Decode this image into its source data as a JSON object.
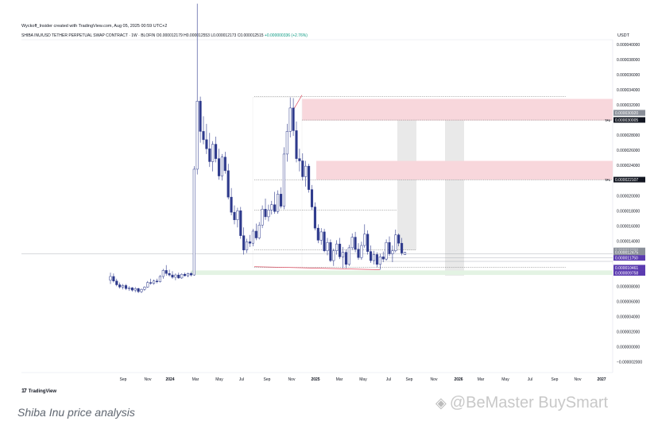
{
  "header": {
    "created_by": "Wyckoff_Insider created with TradingView.com, Aug 05, 2025 00:59 UTC+2",
    "symbol_line": "SHIBA INU/USD TETHER PERPETUAL SWAP CONTRACT · 1W · BLOFIN",
    "ohlc": "O0.000012179 H0.000012553 L0.000012173 C0.000012515",
    "change": "+0.000000336 (+2.76%)"
  },
  "currency": "USDT",
  "footer": {
    "logo": "TradingView",
    "caption": "Shiba Inu price analysis",
    "watermark": "@BeMaster BuySmart"
  },
  "colors": {
    "up": "#ffffff",
    "down": "#2e3a8c",
    "wick": "#2e3a8c",
    "supply_zone": "#f8d7dc",
    "demand_zone": "#e3f3e3",
    "projection": "#e9e9e9",
    "trendline": "#e04a5f",
    "label_purple": "#5b3bb0",
    "label_dark": "#131722"
  },
  "chart_data": {
    "type": "candlestick",
    "timeframe": "1W",
    "y_axis": {
      "min": -2e-06,
      "max": 4e-05,
      "ticks": [
        "0.000040000",
        "0.000038000",
        "0.000036000",
        "0.000034000",
        "0.000032000",
        "0.000030000",
        "0.000028000",
        "0.000026000",
        "0.000024000",
        "0.000022000",
        "0.000020000",
        "0.000018000",
        "0.000016000",
        "0.000014000",
        "0.000012000",
        "0.000010000",
        "0.000008000",
        "0.000006000",
        "0.000004000",
        "0.000002000",
        "0.000000000",
        "−0.000002000"
      ]
    },
    "x_axis": {
      "labels": [
        "Sep",
        "Nov",
        "2024",
        "Mar",
        "May",
        "Jul",
        "Sep",
        "Nov",
        "2025",
        "Mar",
        "May",
        "Jul",
        "Sep",
        "Nov",
        "2026",
        "Mar",
        "May",
        "Jul",
        "Sep",
        "Nov",
        "2027"
      ]
    },
    "price_labels": [
      {
        "text": "0.000030964",
        "value": 3.0964e-05,
        "style": "gray"
      },
      {
        "text": "0.000030920",
        "value": 3.092e-05,
        "style": "gray"
      },
      {
        "text": "0.000030005",
        "value": 3.0005e-05,
        "style": "dark",
        "tag": "TP2"
      },
      {
        "text": "0.000022107",
        "value": 2.2107e-05,
        "style": "dark",
        "tag": "TP1"
      },
      {
        "text": "0.000012739",
        "value": 1.2739e-05,
        "style": "gray"
      },
      {
        "text": "0.000012475",
        "value": 1.2475e-05,
        "style": "gray"
      },
      {
        "text": "0.000011750",
        "value": 1.175e-05,
        "style": "purple"
      },
      {
        "text": "0.000010461",
        "value": 1.0461e-05,
        "style": "purple"
      },
      {
        "text": "0.000009758",
        "value": 9.758e-06,
        "style": "purple"
      }
    ],
    "zones": [
      {
        "name": "supply-zone-upper",
        "from": 2.995e-05,
        "to": 3.28e-05
      },
      {
        "name": "supply-zone-lower",
        "from": 2.21e-05,
        "to": 2.46e-05
      },
      {
        "name": "demand-zone",
        "from": 9.5e-06,
        "to": 1.01e-05
      }
    ],
    "candles": [
      [
        8.8e-06,
        9.8e-06,
        8.3e-06,
        9.3e-06
      ],
      [
        9.3e-06,
        9.7e-06,
        8.5e-06,
        8.7e-06
      ],
      [
        8.7e-06,
        9e-06,
        8e-06,
        8.2e-06
      ],
      [
        8.2e-06,
        8.5e-06,
        7.7e-06,
        7.9e-06
      ],
      [
        7.9e-06,
        8.3e-06,
        7.6e-06,
        8.1e-06
      ],
      [
        8.1e-06,
        8.3e-06,
        7.5e-06,
        7.7e-06
      ],
      [
        7.7e-06,
        8e-06,
        7.4e-06,
        7.8e-06
      ],
      [
        7.8e-06,
        7.9e-06,
        7.3e-06,
        7.5e-06
      ],
      [
        7.5e-06,
        7.9e-06,
        7.2e-06,
        7.7e-06
      ],
      [
        7.7e-06,
        7.8e-06,
        7.1e-06,
        7.3e-06
      ],
      [
        7.3e-06,
        7.7e-06,
        7.1e-06,
        7.6e-06
      ],
      [
        7.6e-06,
        8e-06,
        7.4e-06,
        7.9e-06
      ],
      [
        7.9e-06,
        8.7e-06,
        7.8e-06,
        8.5e-06
      ],
      [
        8.5e-06,
        9e-06,
        8.2e-06,
        8.4e-06
      ],
      [
        8.4e-06,
        8.9e-06,
        8.2e-06,
        8.7e-06
      ],
      [
        8.7e-06,
        9e-06,
        8.4e-06,
        8.6e-06
      ],
      [
        8.6e-06,
        9.5e-06,
        8.5e-06,
        9.3e-06
      ],
      [
        9.3e-06,
        1.03e-05,
        9e-06,
        1.01e-05
      ],
      [
        1.01e-05,
        1.08e-05,
        9.4e-06,
        9.7e-06
      ],
      [
        9.7e-06,
        1.02e-05,
        9.3e-06,
        9.5e-06
      ],
      [
        9.5e-06,
        1e-05,
        9e-06,
        9.2e-06
      ],
      [
        9.2e-06,
        9.7e-06,
        8.8e-06,
        9.5e-06
      ],
      [
        9.5e-06,
        9.8e-06,
        9e-06,
        9.1e-06
      ],
      [
        9.1e-06,
        9.7e-06,
        9e-06,
        9.6e-06
      ],
      [
        9.6e-06,
        9.8e-06,
        9.3e-06,
        9.4e-06
      ],
      [
        9.4e-06,
        9.8e-06,
        9.2e-06,
        9.7e-06
      ],
      [
        9.7e-06,
        9.9e-06,
        9.3e-06,
        9.5e-06
      ],
      [
        9.5e-06,
        2.39e-05,
        9.4e-06,
        2.35e-05
      ],
      [
        2.35e-05,
        4.54e-05,
        2.28e-05,
        3.25e-05
      ],
      [
        3.25e-05,
        3.31e-05,
        2.7e-05,
        2.85e-05
      ],
      [
        2.85e-05,
        3.05e-05,
        2.68e-05,
        2.74e-05
      ],
      [
        2.74e-05,
        2.95e-05,
        2.55e-05,
        2.62e-05
      ],
      [
        2.62e-05,
        2.83e-05,
        2.38e-05,
        2.45e-05
      ],
      [
        2.45e-05,
        2.72e-05,
        2.32e-05,
        2.68e-05
      ],
      [
        2.68e-05,
        2.78e-05,
        2.44e-05,
        2.49e-05
      ],
      [
        2.49e-05,
        2.62e-05,
        2.21e-05,
        2.26e-05
      ],
      [
        2.26e-05,
        2.55e-05,
        2.2e-05,
        2.51e-05
      ],
      [
        2.51e-05,
        2.58e-05,
        2.29e-05,
        2.33e-05
      ],
      [
        2.33e-05,
        2.42e-05,
        1.95e-05,
        1.98e-05
      ],
      [
        1.98e-05,
        2.1e-05,
        1.74e-05,
        1.78e-05
      ],
      [
        1.78e-05,
        1.87e-05,
        1.62e-05,
        1.68e-05
      ],
      [
        1.68e-05,
        1.84e-05,
        1.58e-05,
        1.8e-05
      ],
      [
        1.8e-05,
        1.85e-05,
        1.43e-05,
        1.47e-05
      ],
      [
        1.47e-05,
        1.58e-05,
        1.22e-05,
        1.28e-05
      ],
      [
        1.28e-05,
        1.43e-05,
        1.24e-05,
        1.39e-05
      ],
      [
        1.39e-05,
        1.48e-05,
        1.32e-05,
        1.37e-05
      ],
      [
        1.37e-05,
        1.56e-05,
        1.33e-05,
        1.53e-05
      ],
      [
        1.53e-05,
        1.63e-05,
        1.41e-05,
        1.44e-05
      ],
      [
        1.44e-05,
        1.65e-05,
        1.42e-05,
        1.61e-05
      ],
      [
        1.61e-05,
        1.87e-05,
        1.57e-05,
        1.82e-05
      ],
      [
        1.82e-05,
        1.96e-05,
        1.68e-05,
        1.72e-05
      ],
      [
        1.72e-05,
        1.88e-05,
        1.66e-05,
        1.81e-05
      ],
      [
        1.81e-05,
        1.93e-05,
        1.75e-05,
        1.88e-05
      ],
      [
        1.88e-05,
        2.05e-05,
        1.76e-05,
        1.79e-05
      ],
      [
        1.79e-05,
        2.07e-05,
        1.76e-05,
        2.02e-05
      ],
      [
        2.02e-05,
        2.11e-05,
        1.83e-05,
        1.86e-05
      ],
      [
        1.86e-05,
        2.64e-05,
        1.82e-05,
        2.55e-05
      ],
      [
        2.55e-05,
        2.95e-05,
        2.45e-05,
        2.85e-05
      ],
      [
        2.85e-05,
        3.3e-05,
        2.77e-05,
        3.16e-05
      ],
      [
        3.16e-05,
        3.29e-05,
        2.79e-05,
        2.86e-05
      ],
      [
        2.86e-05,
        2.98e-05,
        2.44e-05,
        2.49e-05
      ],
      [
        2.49e-05,
        2.62e-05,
        2.32e-05,
        2.46e-05
      ],
      [
        2.46e-05,
        2.56e-05,
        2.2e-05,
        2.25e-05
      ],
      [
        2.25e-05,
        2.46e-05,
        2.12e-05,
        2.39e-05
      ],
      [
        2.39e-05,
        2.42e-05,
        2.04e-05,
        2.08e-05
      ],
      [
        2.08e-05,
        2.14e-05,
        1.81e-05,
        1.85e-05
      ],
      [
        1.85e-05,
        1.91e-05,
        1.54e-05,
        1.57e-05
      ],
      [
        1.57e-05,
        1.62e-05,
        1.37e-05,
        1.41e-05
      ],
      [
        1.41e-05,
        1.57e-05,
        1.35e-05,
        1.52e-05
      ],
      [
        1.52e-05,
        1.56e-05,
        1.25e-05,
        1.27e-05
      ],
      [
        1.27e-05,
        1.44e-05,
        1.21e-05,
        1.38e-05
      ],
      [
        1.38e-05,
        1.42e-05,
        1.12e-05,
        1.14e-05
      ],
      [
        1.14e-05,
        1.3e-05,
        1.07e-05,
        1.27e-05
      ],
      [
        1.27e-05,
        1.41e-05,
        1.22e-05,
        1.36e-05
      ],
      [
        1.36e-05,
        1.44e-05,
        1.16e-05,
        1.19e-05
      ],
      [
        1.19e-05,
        1.32e-05,
        1.04e-05,
        1.25e-05
      ],
      [
        1.25e-05,
        1.29e-05,
        1.04e-05,
        1.09e-05
      ],
      [
        1.09e-05,
        1.35e-05,
        1.07e-05,
        1.31e-05
      ],
      [
        1.31e-05,
        1.5e-05,
        1.28e-05,
        1.45e-05
      ],
      [
        1.45e-05,
        1.52e-05,
        1.25e-05,
        1.29e-05
      ],
      [
        1.29e-05,
        1.37e-05,
        1.15e-05,
        1.18e-05
      ],
      [
        1.18e-05,
        1.39e-05,
        1.15e-05,
        1.34e-05
      ],
      [
        1.34e-05,
        1.62e-05,
        1.31e-05,
        1.49e-05
      ],
      [
        1.49e-05,
        1.54e-05,
        1.22e-05,
        1.26e-05
      ],
      [
        1.26e-05,
        1.34e-05,
        1.11e-05,
        1.14e-05
      ],
      [
        1.14e-05,
        1.27e-05,
        1.09e-05,
        1.22e-05
      ],
      [
        1.22e-05,
        1.25e-05,
        1.05e-05,
        1.09e-05
      ],
      [
        1.09e-05,
        1.23e-05,
        1.02e-05,
        1.19e-05
      ],
      [
        1.19e-05,
        1.26e-05,
        1.12e-05,
        1.16e-05
      ],
      [
        1.16e-05,
        1.42e-05,
        1.14e-05,
        1.38e-05
      ],
      [
        1.38e-05,
        1.46e-05,
        1.2e-05,
        1.23e-05
      ],
      [
        1.23e-05,
        1.34e-05,
        1.12e-05,
        1.27e-05
      ],
      [
        1.27e-05,
        1.55e-05,
        1.25e-05,
        1.48e-05
      ],
      [
        1.48e-05,
        1.5e-05,
        1.33e-05,
        1.37e-05
      ],
      [
        1.37e-05,
        1.44e-05,
        1.21e-05,
        1.24e-05
      ],
      [
        1.2179e-05,
        1.2553e-05,
        1.2173e-05,
        1.2515e-05
      ]
    ]
  }
}
